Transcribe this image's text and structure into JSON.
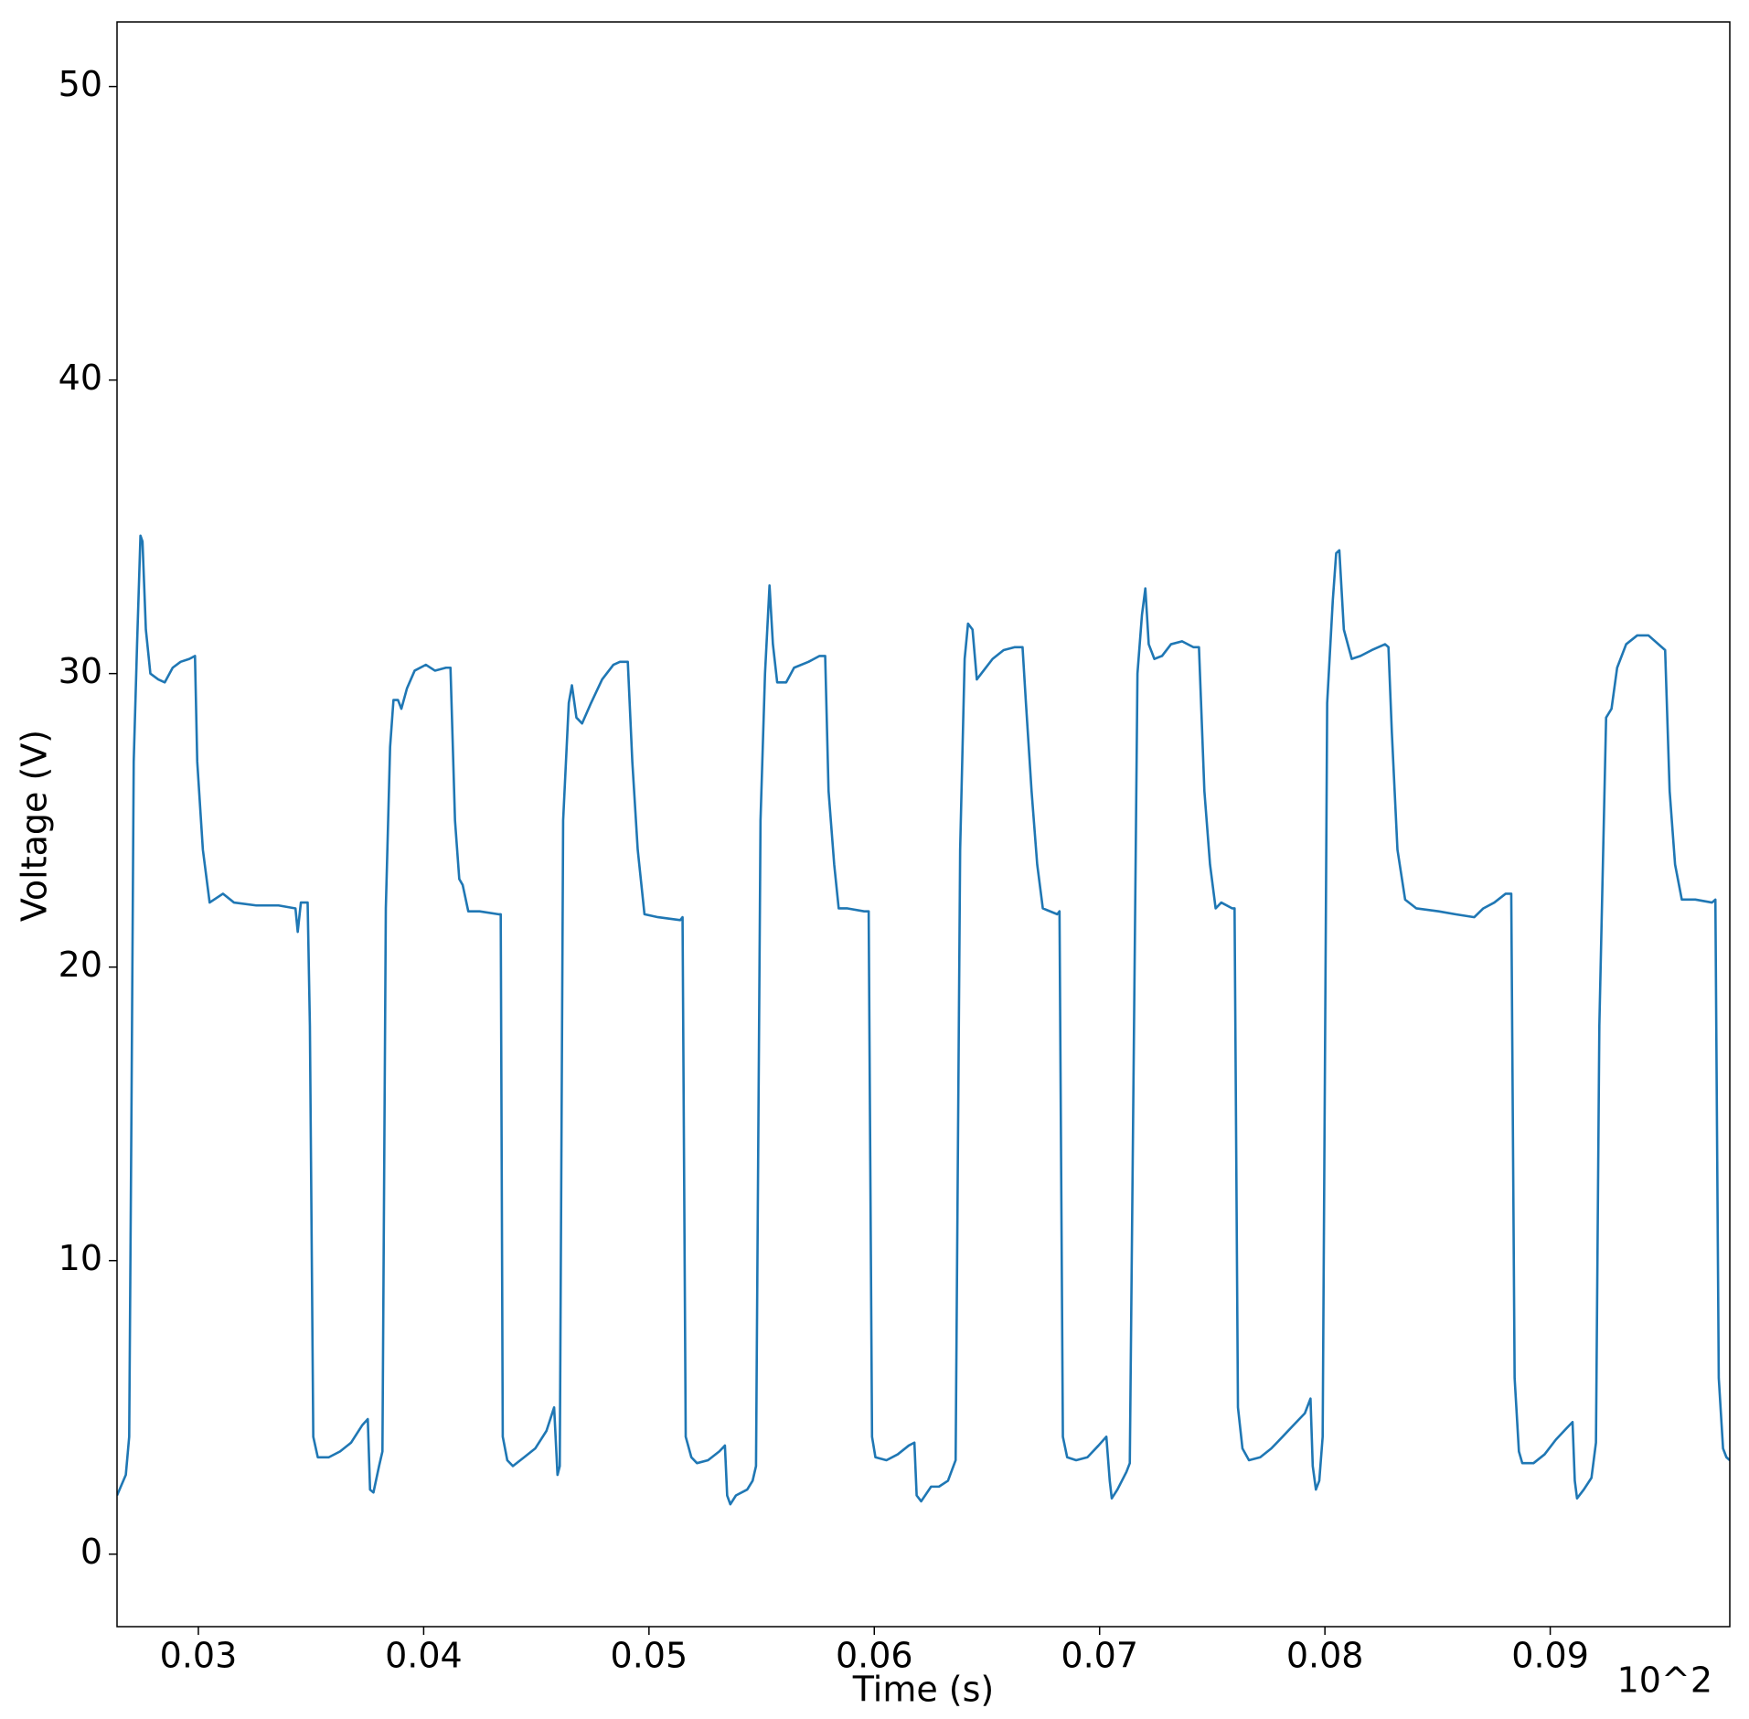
{
  "chart_data": {
    "type": "line",
    "xlabel": "Time (s)",
    "ylabel": "Voltage (V)",
    "x_offset_label": "10^2",
    "xlim": [
      0.02639,
      0.09797
    ],
    "ylim": [
      -2.47,
      52.2
    ],
    "xticks": [
      0.03,
      0.04,
      0.05,
      0.06,
      0.07,
      0.08,
      0.09
    ],
    "yticks": [
      0,
      10,
      20,
      30,
      40,
      50
    ],
    "grid": false,
    "series": [
      {
        "color": "#1f77b4",
        "x": [
          0.02639,
          0.02678,
          0.02693,
          0.02703,
          0.02713,
          0.02728,
          0.02743,
          0.02752,
          0.02767,
          0.02787,
          0.02822,
          0.02851,
          0.02886,
          0.02921,
          0.0296,
          0.02985,
          0.02995,
          0.0302,
          0.0305,
          0.03109,
          0.03158,
          0.03257,
          0.03356,
          0.03431,
          0.03441,
          0.03455,
          0.03485,
          0.03495,
          0.0351,
          0.0353,
          0.03579,
          0.03629,
          0.03678,
          0.03728,
          0.03752,
          0.03762,
          0.03777,
          0.03802,
          0.03817,
          0.03832,
          0.03851,
          0.03866,
          0.03886,
          0.03901,
          0.03926,
          0.0396,
          0.0401,
          0.0405,
          0.04099,
          0.04119,
          0.04139,
          0.04158,
          0.04173,
          0.04198,
          0.04248,
          0.04332,
          0.04342,
          0.04351,
          0.04371,
          0.04396,
          0.04446,
          0.04495,
          0.04545,
          0.04579,
          0.04594,
          0.04604,
          0.04619,
          0.04644,
          0.04658,
          0.04678,
          0.04703,
          0.04743,
          0.04792,
          0.04842,
          0.04871,
          0.04906,
          0.04926,
          0.0495,
          0.0498,
          0.0504,
          0.05139,
          0.05149,
          0.05163,
          0.05188,
          0.05213,
          0.05262,
          0.05312,
          0.05337,
          0.05347,
          0.05361,
          0.05386,
          0.05436,
          0.0546,
          0.05475,
          0.05495,
          0.05515,
          0.05535,
          0.0555,
          0.05569,
          0.05609,
          0.05644,
          0.05708,
          0.05757,
          0.05782,
          0.05797,
          0.05822,
          0.05842,
          0.05881,
          0.05955,
          0.05975,
          0.0599,
          0.06005,
          0.06054,
          0.06104,
          0.06153,
          0.06178,
          0.06188,
          0.06208,
          0.06252,
          0.06287,
          0.06327,
          0.06361,
          0.06381,
          0.06401,
          0.06416,
          0.06436,
          0.06455,
          0.06485,
          0.06525,
          0.06574,
          0.06624,
          0.06658,
          0.06673,
          0.06698,
          0.06723,
          0.06748,
          0.06812,
          0.06822,
          0.06837,
          0.06856,
          0.06896,
          0.06946,
          0.06995,
          0.0703,
          0.07045,
          0.07054,
          0.07079,
          0.07119,
          0.07134,
          0.07149,
          0.07168,
          0.07188,
          0.07203,
          0.07218,
          0.07243,
          0.07277,
          0.07317,
          0.07366,
          0.07416,
          0.07441,
          0.07465,
          0.0749,
          0.07515,
          0.0754,
          0.07589,
          0.07599,
          0.07614,
          0.07634,
          0.07663,
          0.07713,
          0.07762,
          0.07812,
          0.07861,
          0.07911,
          0.07936,
          0.07946,
          0.0796,
          0.07975,
          0.0799,
          0.0801,
          0.08035,
          0.0805,
          0.08064,
          0.08084,
          0.08119,
          0.08158,
          0.08208,
          0.08267,
          0.08282,
          0.08297,
          0.08322,
          0.08356,
          0.08406,
          0.08505,
          0.08579,
          0.08663,
          0.08703,
          0.08752,
          0.08802,
          0.08827,
          0.08842,
          0.08861,
          0.08876,
          0.08926,
          0.08975,
          0.09025,
          0.09074,
          0.09099,
          0.09109,
          0.09119,
          0.09149,
          0.09183,
          0.09203,
          0.09218,
          0.09248,
          0.09272,
          0.09297,
          0.09337,
          0.09386,
          0.09436,
          0.09495,
          0.0951,
          0.0953,
          0.09554,
          0.09584,
          0.09644,
          0.09718,
          0.09733,
          0.09748,
          0.09767,
          0.09782,
          0.09797
        ],
        "values": [
          2.0,
          2.7,
          4,
          15,
          27,
          31,
          34.7,
          34.5,
          31.5,
          30,
          29.8,
          29.7,
          30.2,
          30.4,
          30.5,
          30.6,
          27,
          24,
          22.2,
          22.5,
          22.2,
          22.1,
          22.1,
          22,
          21.2,
          22.2,
          22.2,
          18,
          4,
          3.3,
          3.3,
          3.5,
          3.8,
          4.4,
          4.6,
          2.2,
          2.1,
          3.0,
          3.5,
          22,
          27.5,
          29.1,
          29.1,
          28.8,
          29.5,
          30.1,
          30.3,
          30.1,
          30.2,
          30.2,
          25,
          23,
          22.8,
          21.9,
          21.9,
          21.8,
          21.8,
          4,
          3.2,
          3.0,
          3.3,
          3.6,
          4.2,
          5.0,
          2.7,
          3,
          25,
          29,
          29.6,
          28.5,
          28.3,
          29.0,
          29.8,
          30.3,
          30.4,
          30.4,
          27,
          24,
          21.8,
          21.7,
          21.6,
          21.7,
          4,
          3.3,
          3.1,
          3.2,
          3.5,
          3.7,
          2.0,
          1.7,
          2.0,
          2.2,
          2.5,
          3,
          25,
          30,
          33,
          31,
          29.7,
          29.7,
          30.2,
          30.4,
          30.6,
          30.6,
          26,
          23.5,
          22,
          22,
          21.9,
          21.9,
          4,
          3.3,
          3.2,
          3.4,
          3.7,
          3.8,
          2.0,
          1.8,
          2.3,
          2.3,
          2.5,
          3.2,
          24,
          30.5,
          31.7,
          31.5,
          29.8,
          30.1,
          30.5,
          30.8,
          30.9,
          30.9,
          29,
          26,
          23.5,
          22,
          21.8,
          21.9,
          4,
          3.3,
          3.2,
          3.3,
          3.7,
          4.0,
          2.5,
          1.9,
          2.2,
          2.8,
          3.1,
          15,
          30,
          32,
          32.9,
          31,
          30.5,
          30.6,
          31,
          31.1,
          30.9,
          30.9,
          26,
          23.5,
          22,
          22.2,
          22,
          22,
          5,
          3.6,
          3.2,
          3.3,
          3.6,
          4,
          4.4,
          4.8,
          5.3,
          3,
          2.2,
          2.5,
          4,
          29,
          32.5,
          34.1,
          34.2,
          31.5,
          30.5,
          30.6,
          30.8,
          31.0,
          30.9,
          28,
          24,
          22.3,
          22.0,
          21.9,
          21.8,
          21.7,
          22.0,
          22.2,
          22.5,
          22.5,
          6,
          3.5,
          3.1,
          3.1,
          3.4,
          3.9,
          4.3,
          4.5,
          2.5,
          1.9,
          2.2,
          2.6,
          3.8,
          18,
          28.5,
          28.8,
          30.2,
          31,
          31.3,
          31.3,
          30.9,
          30.8,
          26,
          23.5,
          22.3,
          22.3,
          22.2,
          22.3,
          6,
          3.6,
          3.3,
          3.2
        ]
      }
    ]
  }
}
